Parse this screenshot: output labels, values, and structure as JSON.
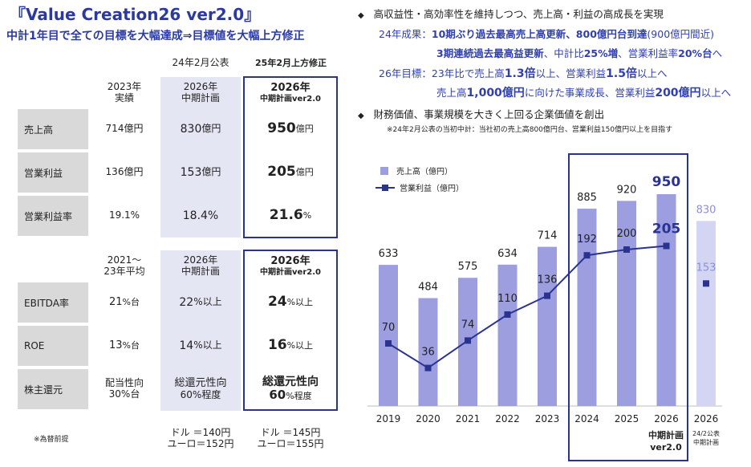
{
  "title": "『Value Creation26 ver2.0』",
  "subtitle": "中計1年目で全ての目標を大幅達成⇒目標値を大幅上方修正",
  "table1": {
    "top_headers": {
      "col2": "24年2月公表",
      "col3": "25年2月上方修正"
    },
    "col_headers": {
      "col1": [
        "2023年",
        "実績"
      ],
      "col2": [
        "2026年",
        "中期計画"
      ],
      "col3": [
        "2026年",
        "中期計画ver2.0"
      ]
    },
    "rows": [
      {
        "label": "売上高",
        "c1": "714億円",
        "c2_num": "830",
        "c2_unit": "億円",
        "c3_num": "950",
        "c3_unit": "億円"
      },
      {
        "label": "営業利益",
        "c1": "136億円",
        "c2_num": "153",
        "c2_unit": "億円",
        "c3_num": "205",
        "c3_unit": "億円"
      },
      {
        "label": "営業利益率",
        "c1": "19.1%",
        "c2_num": "18.4%",
        "c2_unit": "",
        "c3_num": "21.6",
        "c3_unit": "%"
      }
    ]
  },
  "table2": {
    "col_headers": {
      "col1": [
        "2021～",
        "23年平均"
      ],
      "col2": [
        "2026年",
        "中期計画"
      ],
      "col3": [
        "2026年",
        "中期計画ver2.0"
      ]
    },
    "rows": [
      {
        "label": "EBITDA率",
        "c1_num": "21",
        "c1_unit": "%台",
        "c2_num": "22",
        "c2_unit": "%以上",
        "c3_num": "24",
        "c3_unit": "%以上"
      },
      {
        "label": "ROE",
        "c1_num": "13",
        "c1_unit": "%台",
        "c2_num": "14",
        "c2_unit": "%以上",
        "c3_num": "16",
        "c3_unit": "%以上"
      }
    ],
    "payout": {
      "label": "株主還元",
      "c1": [
        "配当性向",
        "30%台"
      ],
      "c2": [
        "総還元性向",
        "60%程度"
      ],
      "c3_line1": "総還元性向",
      "c3_num": "60",
      "c3_unit": "%程度"
    }
  },
  "fx_note": "※為替前提",
  "fx_col2": [
    "ドル ＝140円",
    "ユーロ＝152円"
  ],
  "fx_col3": [
    "ドル ＝145円",
    "ユーロ＝155円"
  ],
  "right": {
    "bullet1": "高収益性・高効率性を維持しつつ、売上高・利益の高成長を実現",
    "line2_prefix": "24年成果：",
    "line2_bold1": "10期ぶり過去最高売上高更新、800億円台到達",
    "line2_tail": "(900億円間近)",
    "line3_bold1": "3期連続過去最高益更新",
    "line3_mid": "、中計比",
    "line3_bold2": "25%増",
    "line3_mid2": "、営業利益率",
    "line3_bold3": "20%台",
    "line3_tail": "へ",
    "line4_prefix": "26年目標：23年比で売上高",
    "line4_bold1": "1.3倍",
    "line4_mid": "以上、営業利益",
    "line4_bold2": "1.5倍",
    "line4_tail": "以上へ",
    "line5_prefix": "売上高",
    "line5_bold1": "1,000億円",
    "line5_mid": "に向けた事業成長、営業利益",
    "line5_bold2": "200億円",
    "line5_tail": "以上へ",
    "bullet2": "財務価値、事業規模を大きく上回る企業価値を創出",
    "note": "※24年2月公表の当初中計：当社初の売上高800億円台、営業利益150億円以上を目指す"
  },
  "chart_data": {
    "type": "bar",
    "categories": [
      "2019",
      "2020",
      "2021",
      "2022",
      "2023",
      "2024",
      "2025",
      "2026",
      "2026"
    ],
    "series": [
      {
        "name": "売上高（億円）",
        "type": "bar",
        "values": [
          633,
          484,
          575,
          634,
          714,
          885,
          920,
          950,
          830
        ]
      },
      {
        "name": "営業利益（億円）",
        "type": "line",
        "values": [
          70,
          36,
          74,
          110,
          136,
          192,
          200,
          205,
          153
        ]
      }
    ],
    "highlight_label": [
      "中期計画",
      "ver2.0"
    ],
    "last_category_note": [
      "24/2公表",
      "中期計画"
    ],
    "colors": {
      "bar": "#9c9ee0",
      "bar_light": "#d4d5f3",
      "line": "#2b3391",
      "box": "#2b3391"
    }
  }
}
